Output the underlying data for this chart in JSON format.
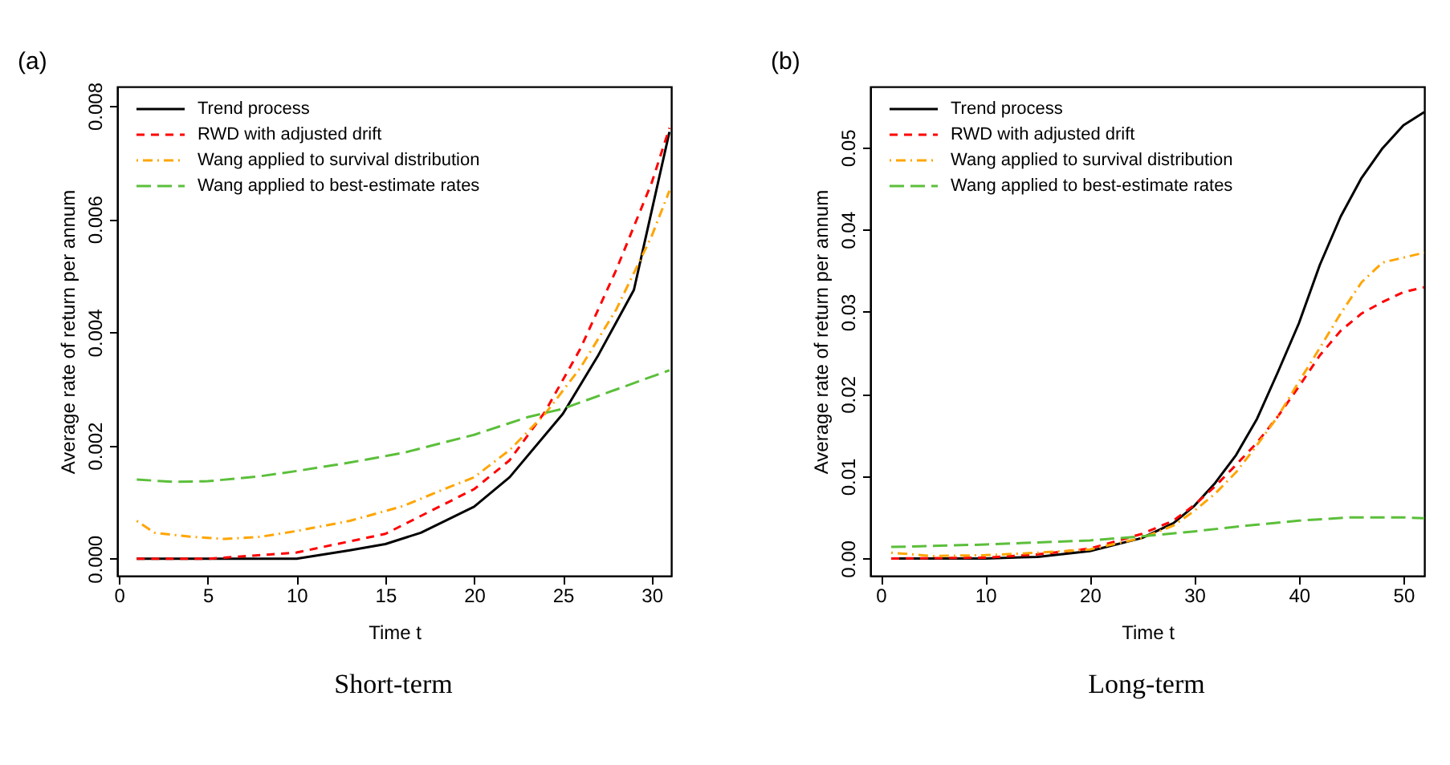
{
  "chart_data": [
    {
      "type": "line",
      "title": "(a)",
      "xlabel": "Time t",
      "ylabel": "Average rate of return per annum",
      "annotations": [
        "Short-term"
      ],
      "legend": "top left",
      "grid": false,
      "xlim": [
        -0.1,
        31.1
      ],
      "ylim": [
        -0.0003,
        0.00834
      ],
      "xticks": [
        0,
        5,
        10,
        15,
        20,
        25,
        30
      ],
      "yticks": [
        {
          "value": 0,
          "label": "0.000"
        },
        {
          "value": 0.002,
          "label": "0.002"
        },
        {
          "value": 0.004,
          "label": "0.004"
        },
        {
          "value": 0.006,
          "label": "0.006"
        },
        {
          "value": 0.008,
          "label": "0.008"
        }
      ],
      "series": [
        {
          "name": "Trend process",
          "color": "#000000",
          "line_style": "solid",
          "x": [
            1,
            5,
            8,
            10,
            13,
            15,
            17,
            20,
            22,
            25,
            27,
            29,
            31
          ],
          "values": [
            0.0,
            0.0,
            0.0,
            0.0,
            0.00015,
            0.00026,
            0.00046,
            0.00092,
            0.00144,
            0.00256,
            0.0036,
            0.00475,
            0.00754
          ]
        },
        {
          "name": "RWD with adjusted drift",
          "color": "#ff0000",
          "line_style": "dashed",
          "x": [
            1,
            5,
            10,
            15,
            20,
            22,
            24,
            26,
            28,
            30,
            31
          ],
          "values": [
            0.0,
            0.0,
            0.00011,
            0.00044,
            0.00123,
            0.00174,
            0.0026,
            0.00372,
            0.0051,
            0.00664,
            0.00761
          ]
        },
        {
          "name": "Wang applied to survival distribution",
          "color": "#ffa500",
          "line_style": "dashdot",
          "x": [
            1,
            2,
            4,
            6,
            8,
            10,
            13,
            16,
            18,
            20,
            22,
            24,
            26,
            28,
            30,
            31
          ],
          "values": [
            0.00067,
            0.00046,
            0.00039,
            0.00035,
            0.00039,
            0.00049,
            0.00067,
            0.00093,
            0.00119,
            0.00144,
            0.00192,
            0.00256,
            0.00338,
            0.0044,
            0.0057,
            0.0065
          ]
        },
        {
          "name": "Wang applied to best-estimate rates",
          "color": "#5bbf3a",
          "line_style": "longdash",
          "x": [
            1,
            3,
            5,
            8,
            10,
            13,
            16,
            20,
            23,
            25,
            28,
            31
          ],
          "values": [
            0.0014,
            0.00136,
            0.00137,
            0.00146,
            0.00155,
            0.0017,
            0.00187,
            0.00219,
            0.0025,
            0.00265,
            0.00299,
            0.00333
          ]
        }
      ]
    },
    {
      "type": "line",
      "title": "(b)",
      "xlabel": "Time t",
      "ylabel": "Average rate of return per annum",
      "annotations": [
        "Long-term"
      ],
      "legend": "top left",
      "grid": false,
      "xlim": [
        -1,
        52
      ],
      "ylim": [
        -0.0021,
        0.0574
      ],
      "xticks": [
        0,
        10,
        20,
        30,
        40,
        50
      ],
      "yticks": [
        {
          "value": 0,
          "label": "0.00"
        },
        {
          "value": 0.01,
          "label": "0.01"
        },
        {
          "value": 0.02,
          "label": "0.02"
        },
        {
          "value": 0.03,
          "label": "0.03"
        },
        {
          "value": 0.04,
          "label": "0.04"
        },
        {
          "value": 0.05,
          "label": "0.05"
        }
      ],
      "series": [
        {
          "name": "Trend process",
          "color": "#000000",
          "line_style": "solid",
          "x": [
            1,
            10,
            15,
            20,
            25,
            28,
            30,
            32,
            34,
            36,
            38,
            40,
            42,
            44,
            46,
            48,
            50,
            52
          ],
          "values": [
            0.0,
            0.0,
            0.0002,
            0.0009,
            0.0025,
            0.0043,
            0.0064,
            0.0092,
            0.0126,
            0.017,
            0.0227,
            0.0286,
            0.0357,
            0.0416,
            0.0463,
            0.0499,
            0.0527,
            0.0543
          ]
        },
        {
          "name": "RWD with adjusted drift",
          "color": "#ff0000",
          "line_style": "dashed",
          "x": [
            1,
            10,
            15,
            20,
            25,
            28,
            30,
            32,
            34,
            36,
            38,
            40,
            42,
            44,
            46,
            48,
            50,
            52
          ],
          "values": [
            0.0,
            0.0001,
            0.0005,
            0.0012,
            0.003,
            0.0046,
            0.0065,
            0.0088,
            0.0114,
            0.0141,
            0.0173,
            0.0209,
            0.0247,
            0.0277,
            0.0298,
            0.0312,
            0.0324,
            0.033
          ]
        },
        {
          "name": "Wang applied to survival distribution",
          "color": "#ffa500",
          "line_style": "dashdot",
          "x": [
            1,
            5,
            10,
            15,
            20,
            25,
            28,
            30,
            32,
            34,
            36,
            38,
            40,
            42,
            44,
            46,
            48,
            50,
            52
          ],
          "values": [
            0.0007,
            0.0003,
            0.0004,
            0.0007,
            0.0011,
            0.0025,
            0.004,
            0.0058,
            0.0079,
            0.0105,
            0.0138,
            0.0173,
            0.0215,
            0.0256,
            0.0298,
            0.0336,
            0.036,
            0.0366,
            0.0372
          ]
        },
        {
          "name": "Wang applied to best-estimate rates",
          "color": "#5bbf3a",
          "line_style": "longdash",
          "x": [
            1,
            10,
            20,
            25,
            30,
            35,
            40,
            45,
            50,
            52
          ],
          "values": [
            0.0014,
            0.0017,
            0.0022,
            0.0027,
            0.0033,
            0.004,
            0.0046,
            0.005,
            0.005,
            0.0049
          ]
        }
      ]
    }
  ]
}
